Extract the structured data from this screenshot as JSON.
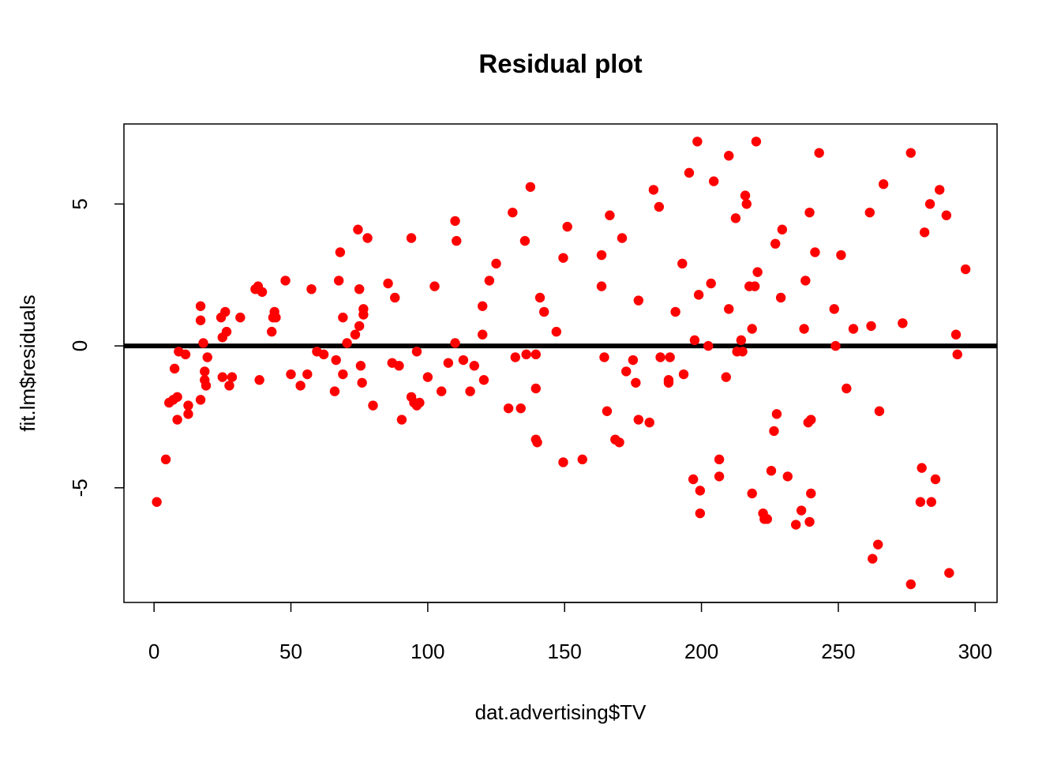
{
  "chart_data": {
    "type": "scatter",
    "title": "Residual plot",
    "xlabel": "dat.advertising$TV",
    "ylabel": "fit.lm$residuals",
    "xlim": [
      -11,
      308
    ],
    "ylim": [
      -9.04,
      7.82
    ],
    "xticks": [
      0,
      50,
      100,
      150,
      200,
      250,
      300
    ],
    "yticks": [
      -5,
      0,
      5
    ],
    "reference_line": {
      "y": 0,
      "color": "#000000"
    },
    "point_color": "#ff0000",
    "grid": false,
    "points": [
      [
        1,
        -5.5
      ],
      [
        4.3,
        -4.0
      ],
      [
        5.5,
        -2.0
      ],
      [
        7,
        -1.9
      ],
      [
        7.5,
        -0.8
      ],
      [
        8.5,
        -1.8
      ],
      [
        8.5,
        -2.6
      ],
      [
        9,
        -0.2
      ],
      [
        11.5,
        -0.3
      ],
      [
        12.5,
        -2.1
      ],
      [
        12.5,
        -2.4
      ],
      [
        17,
        1.4
      ],
      [
        17,
        0.9
      ],
      [
        17,
        -1.9
      ],
      [
        18,
        0.1
      ],
      [
        18.5,
        -1.2
      ],
      [
        18.5,
        -0.9
      ],
      [
        19,
        -1.4
      ],
      [
        19.5,
        -0.4
      ],
      [
        24.5,
        1.0
      ],
      [
        25,
        0.3
      ],
      [
        25,
        -1.1
      ],
      [
        26,
        1.2
      ],
      [
        26.5,
        0.5
      ],
      [
        27.5,
        -1.4
      ],
      [
        28.5,
        -1.1
      ],
      [
        31.5,
        1.0
      ],
      [
        37,
        2.0
      ],
      [
        38,
        2.1
      ],
      [
        38.5,
        -1.2
      ],
      [
        39.5,
        1.9
      ],
      [
        43,
        0.5
      ],
      [
        43.5,
        1.0
      ],
      [
        44,
        1.2
      ],
      [
        44.5,
        1.0
      ],
      [
        48,
        2.3
      ],
      [
        50,
        -1.0
      ],
      [
        53.5,
        -1.4
      ],
      [
        56,
        -1.0
      ],
      [
        57.5,
        2.0
      ],
      [
        59.5,
        -0.2
      ],
      [
        62,
        -0.3
      ],
      [
        66,
        -1.6
      ],
      [
        66.5,
        -0.5
      ],
      [
        67.5,
        2.3
      ],
      [
        68,
        3.3
      ],
      [
        69,
        1.0
      ],
      [
        69,
        -1.0
      ],
      [
        70.5,
        0.1
      ],
      [
        73.5,
        0.4
      ],
      [
        74.5,
        4.1
      ],
      [
        75,
        2.0
      ],
      [
        75,
        0.7
      ],
      [
        75.5,
        -0.7
      ],
      [
        76,
        -1.3
      ],
      [
        76.5,
        1.3
      ],
      [
        76.5,
        1.1
      ],
      [
        78,
        3.8
      ],
      [
        80,
        -2.1
      ],
      [
        85.5,
        2.2
      ],
      [
        87,
        -0.6
      ],
      [
        88,
        1.7
      ],
      [
        89.5,
        -0.7
      ],
      [
        90.5,
        -2.6
      ],
      [
        94,
        3.8
      ],
      [
        94,
        -1.8
      ],
      [
        95,
        -2.0
      ],
      [
        96,
        -2.1
      ],
      [
        96,
        -0.2
      ],
      [
        97,
        -2.0
      ],
      [
        100,
        -1.1
      ],
      [
        102.5,
        2.1
      ],
      [
        105,
        -1.6
      ],
      [
        107.5,
        -0.6
      ],
      [
        110,
        0.1
      ],
      [
        110,
        4.4
      ],
      [
        110.5,
        3.7
      ],
      [
        113,
        -0.5
      ],
      [
        115.5,
        -1.6
      ],
      [
        117,
        -0.7
      ],
      [
        120,
        1.4
      ],
      [
        120,
        0.4
      ],
      [
        120.5,
        -1.2
      ],
      [
        122.5,
        2.3
      ],
      [
        125,
        2.9
      ],
      [
        129.5,
        -2.2
      ],
      [
        131,
        4.7
      ],
      [
        132,
        -0.4
      ],
      [
        134,
        -2.2
      ],
      [
        135.5,
        3.7
      ],
      [
        136,
        -0.3
      ],
      [
        137.5,
        5.6
      ],
      [
        139.5,
        -1.5
      ],
      [
        139.5,
        -0.3
      ],
      [
        139.5,
        -3.3
      ],
      [
        140,
        -3.4
      ],
      [
        141,
        1.7
      ],
      [
        142.5,
        1.2
      ],
      [
        147,
        0.5
      ],
      [
        149.5,
        3.1
      ],
      [
        149.5,
        -4.1
      ],
      [
        151,
        4.2
      ],
      [
        156.5,
        -4.0
      ],
      [
        163.5,
        2.1
      ],
      [
        163.5,
        3.2
      ],
      [
        164.5,
        -0.4
      ],
      [
        165.5,
        -2.3
      ],
      [
        166.5,
        4.6
      ],
      [
        168.5,
        -3.3
      ],
      [
        170,
        -3.4
      ],
      [
        171,
        3.8
      ],
      [
        172.5,
        -0.9
      ],
      [
        175,
        -0.5
      ],
      [
        176,
        -1.3
      ],
      [
        177,
        1.6
      ],
      [
        177,
        -2.6
      ],
      [
        181,
        -2.7
      ],
      [
        182.5,
        5.5
      ],
      [
        184.5,
        4.9
      ],
      [
        185,
        -0.4
      ],
      [
        188,
        -1.2
      ],
      [
        188,
        -1.3
      ],
      [
        188.5,
        -0.4
      ],
      [
        190.5,
        1.2
      ],
      [
        193,
        2.9
      ],
      [
        193.5,
        -1.0
      ],
      [
        195.5,
        6.1
      ],
      [
        197,
        -4.7
      ],
      [
        197.5,
        0.2
      ],
      [
        198.5,
        7.2
      ],
      [
        199,
        1.8
      ],
      [
        199.5,
        -5.1
      ],
      [
        199.5,
        -5.9
      ],
      [
        202.5,
        0.0
      ],
      [
        203.5,
        2.2
      ],
      [
        204.5,
        5.8
      ],
      [
        206.5,
        -4.0
      ],
      [
        206.5,
        -4.6
      ],
      [
        209,
        -1.1
      ],
      [
        210,
        6.7
      ],
      [
        210,
        1.3
      ],
      [
        212.5,
        4.5
      ],
      [
        213,
        -0.2
      ],
      [
        214.5,
        0.2
      ],
      [
        215,
        -0.2
      ],
      [
        216,
        5.3
      ],
      [
        216.5,
        5.0
      ],
      [
        217.5,
        2.1
      ],
      [
        218.5,
        -5.2
      ],
      [
        218.5,
        0.6
      ],
      [
        219.5,
        2.1
      ],
      [
        220,
        7.2
      ],
      [
        220.5,
        2.6
      ],
      [
        222.5,
        -5.9
      ],
      [
        223,
        -6.1
      ],
      [
        224,
        -6.1
      ],
      [
        225.5,
        -4.4
      ],
      [
        226.5,
        -3.0
      ],
      [
        227,
        3.6
      ],
      [
        227.5,
        -2.4
      ],
      [
        229,
        1.7
      ],
      [
        229.5,
        4.1
      ],
      [
        231.5,
        -4.6
      ],
      [
        234.5,
        -6.3
      ],
      [
        236.5,
        -5.8
      ],
      [
        237.5,
        0.6
      ],
      [
        238,
        2.3
      ],
      [
        239,
        -2.7
      ],
      [
        239.5,
        -6.2
      ],
      [
        239.5,
        4.7
      ],
      [
        240,
        -2.6
      ],
      [
        240,
        -5.2
      ],
      [
        241.5,
        3.3
      ],
      [
        243,
        6.8
      ],
      [
        248.5,
        1.3
      ],
      [
        249,
        0.0
      ],
      [
        251,
        3.2
      ],
      [
        253,
        -1.5
      ],
      [
        255.5,
        0.6
      ],
      [
        261.5,
        4.7
      ],
      [
        262,
        0.7
      ],
      [
        262.5,
        -7.5
      ],
      [
        264.5,
        -7.0
      ],
      [
        265,
        -2.3
      ],
      [
        266.5,
        5.7
      ],
      [
        273.5,
        0.8
      ],
      [
        276.5,
        -8.4
      ],
      [
        276.5,
        6.8
      ],
      [
        280,
        -5.5
      ],
      [
        280.5,
        -4.3
      ],
      [
        281.5,
        4.0
      ],
      [
        283.5,
        5.0
      ],
      [
        284,
        -5.5
      ],
      [
        285.5,
        -4.7
      ],
      [
        287,
        5.5
      ],
      [
        289.5,
        4.6
      ],
      [
        290.5,
        -8.0
      ],
      [
        293,
        0.4
      ],
      [
        293.5,
        -0.3
      ],
      [
        296.5,
        2.7
      ]
    ]
  }
}
